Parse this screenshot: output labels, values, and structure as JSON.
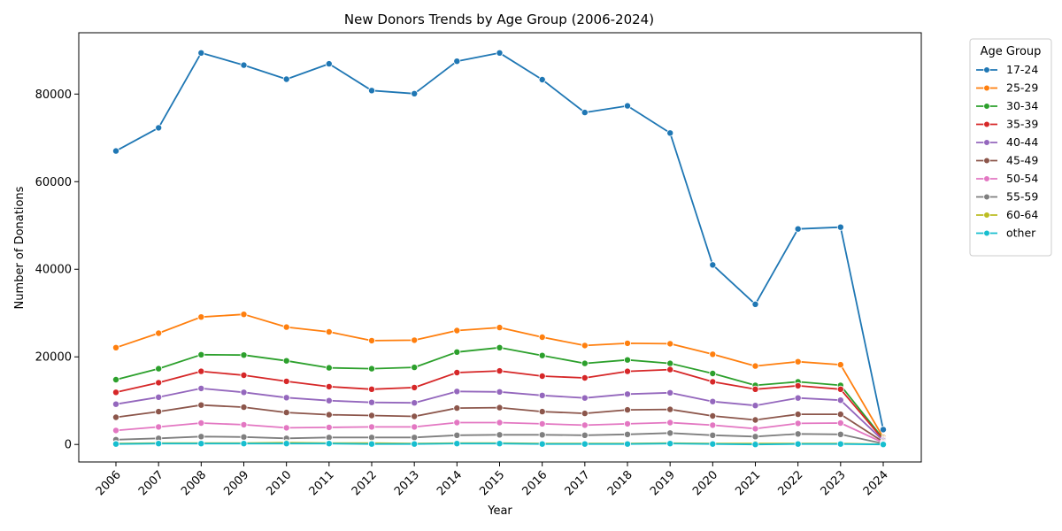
{
  "chart_data": {
    "type": "line",
    "title": "New Donors Trends by Age Group (2006-2024)",
    "xlabel": "Year",
    "ylabel": "Number of Donations",
    "x": [
      "2006",
      "2007",
      "2008",
      "2009",
      "2010",
      "2011",
      "2012",
      "2013",
      "2014",
      "2015",
      "2016",
      "2017",
      "2018",
      "2019",
      "2020",
      "2021",
      "2022",
      "2023",
      "2024"
    ],
    "ylim": [
      -4000,
      94000
    ],
    "yticks": [
      0,
      20000,
      40000,
      60000,
      80000
    ],
    "grid": false,
    "legend_title": "Age Group",
    "legend_position": "outside-top-right",
    "series": [
      {
        "name": "17-24",
        "color": "#1f77b4",
        "values": [
          67000,
          72300,
          89400,
          86600,
          83400,
          86900,
          80800,
          80100,
          87500,
          89400,
          83300,
          75800,
          77300,
          71100,
          41000,
          32000,
          49200,
          49600,
          3400
        ]
      },
      {
        "name": "25-29",
        "color": "#ff7f0e",
        "values": [
          22100,
          25400,
          29100,
          29700,
          26800,
          25700,
          23700,
          23800,
          26000,
          26700,
          24500,
          22600,
          23100,
          23000,
          20600,
          17900,
          18900,
          18200,
          1600
        ]
      },
      {
        "name": "30-34",
        "color": "#2ca02c",
        "values": [
          14800,
          17300,
          20500,
          20400,
          19100,
          17500,
          17300,
          17600,
          21100,
          22100,
          20300,
          18500,
          19300,
          18500,
          16200,
          13500,
          14300,
          13500,
          1300
        ]
      },
      {
        "name": "35-39",
        "color": "#d62728",
        "values": [
          11900,
          14100,
          16700,
          15800,
          14400,
          13200,
          12600,
          13000,
          16400,
          16800,
          15600,
          15200,
          16700,
          17100,
          14300,
          12600,
          13400,
          12600,
          1100
        ]
      },
      {
        "name": "40-44",
        "color": "#9467bd",
        "values": [
          9200,
          10800,
          12800,
          11900,
          10700,
          10000,
          9600,
          9500,
          12100,
          12000,
          11200,
          10600,
          11500,
          11800,
          9800,
          8900,
          10600,
          10100,
          900
        ]
      },
      {
        "name": "45-49",
        "color": "#8c564b",
        "values": [
          6200,
          7500,
          9000,
          8500,
          7300,
          6800,
          6600,
          6400,
          8300,
          8400,
          7500,
          7100,
          7900,
          8000,
          6500,
          5600,
          6900,
          6900,
          600
        ]
      },
      {
        "name": "50-54",
        "color": "#e377c2",
        "values": [
          3200,
          4000,
          4900,
          4500,
          3800,
          3900,
          4000,
          4000,
          5000,
          5000,
          4700,
          4400,
          4700,
          5000,
          4400,
          3600,
          4800,
          4900,
          400
        ]
      },
      {
        "name": "55-59",
        "color": "#7f7f7f",
        "values": [
          1100,
          1400,
          1800,
          1700,
          1400,
          1600,
          1600,
          1600,
          2100,
          2200,
          2200,
          2100,
          2300,
          2600,
          2100,
          1800,
          2400,
          2300,
          200
        ]
      },
      {
        "name": "60-64",
        "color": "#bcbd22",
        "values": [
          200,
          300,
          300,
          300,
          400,
          300,
          300,
          200,
          300,
          300,
          200,
          200,
          200,
          300,
          200,
          200,
          200,
          200,
          50
        ]
      },
      {
        "name": "other",
        "color": "#17becf",
        "values": [
          100,
          200,
          200,
          200,
          200,
          200,
          100,
          100,
          200,
          200,
          100,
          100,
          100,
          200,
          100,
          0,
          100,
          100,
          0
        ]
      }
    ]
  }
}
